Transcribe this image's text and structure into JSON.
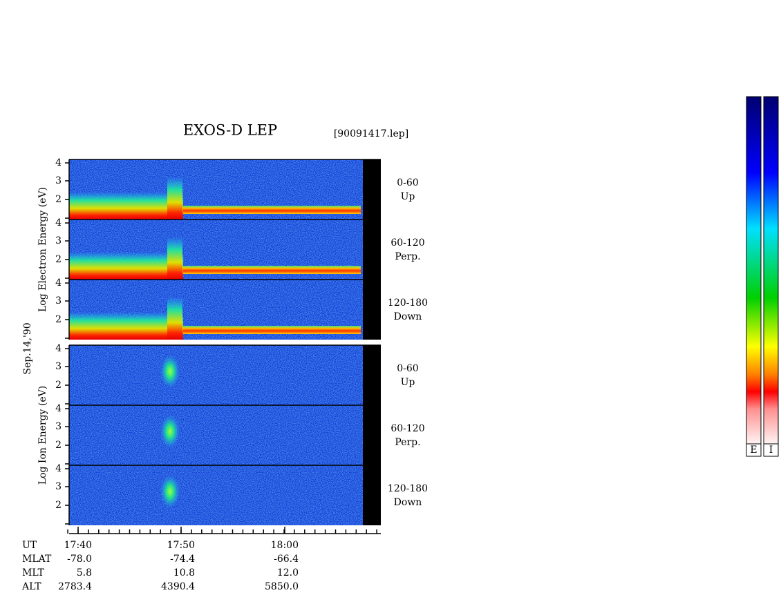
{
  "title": "EXOS-D LEP",
  "file": "[90091417.lep]",
  "date": "Sep.14,'90",
  "groups": [
    {
      "label": "Log Electron Energy (eV)",
      "panels": [
        {
          "yticks": [
            "4",
            "3",
            "2"
          ],
          "channel": [
            "0-60",
            "Up"
          ]
        },
        {
          "yticks": [
            "4",
            "3",
            "2"
          ],
          "channel": [
            "60-120",
            "Perp."
          ]
        },
        {
          "yticks": [
            "4",
            "3",
            "2"
          ],
          "channel": [
            "120-180",
            "Down"
          ]
        }
      ]
    },
    {
      "label": "Log Ion Energy (eV)",
      "panels": [
        {
          "yticks": [
            "4",
            "3",
            "2"
          ],
          "channel": [
            "0-60",
            "Up"
          ]
        },
        {
          "yticks": [
            "4",
            "3",
            "2"
          ],
          "channel": [
            "60-120",
            "Perp."
          ]
        },
        {
          "yticks": [
            "4",
            "3",
            "2"
          ],
          "channel": [
            "120-180",
            "Down"
          ]
        }
      ]
    }
  ],
  "xaxis": {
    "label": "UT",
    "ticks": [
      "17:40",
      "17:50",
      "18:00"
    ]
  },
  "orbit": [
    {
      "label": "MLAT",
      "values": [
        "-78.0",
        "-74.4",
        "-66.4"
      ]
    },
    {
      "label": "MLT",
      "values": [
        "5.8",
        "10.8",
        "12.0"
      ]
    },
    {
      "label": "ALT",
      "values": [
        "2783.4",
        "4390.4",
        "5850.0"
      ]
    }
  ],
  "colorbars": [
    "E",
    "I"
  ]
}
